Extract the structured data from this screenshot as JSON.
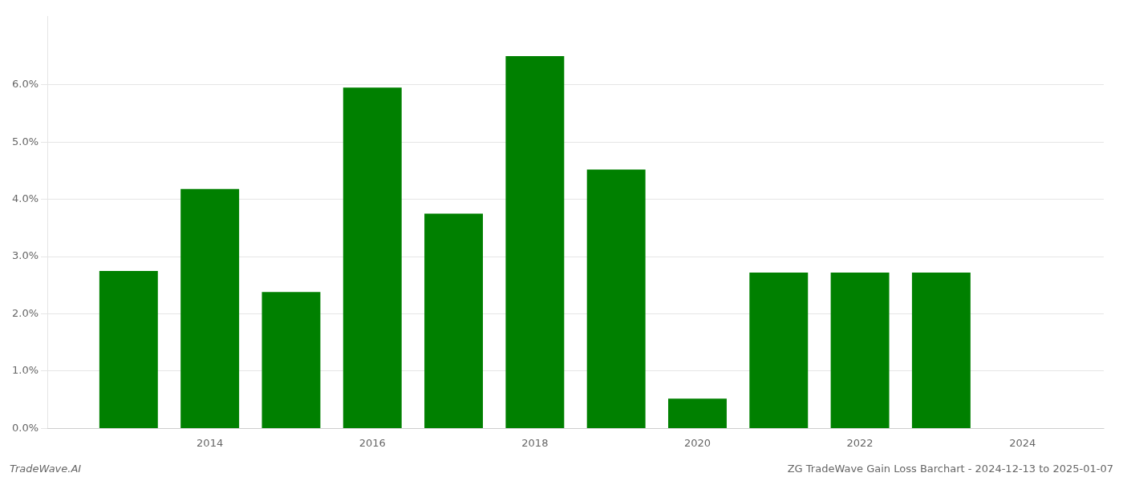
{
  "chart_data": {
    "type": "bar",
    "x": [
      2013,
      2014,
      2015,
      2016,
      2017,
      2018,
      2019,
      2020,
      2021,
      2022,
      2023
    ],
    "values": [
      2.75,
      4.18,
      2.38,
      5.95,
      3.75,
      6.5,
      4.52,
      0.52,
      2.72,
      2.72,
      2.72
    ],
    "color": "#008000",
    "xlim": [
      2012.0,
      2025.0
    ],
    "xticks": [
      2014,
      2016,
      2018,
      2020,
      2022,
      2024
    ],
    "ylim": [
      0,
      7.2
    ],
    "yticks": [
      {
        "value": 0.0,
        "label": "0.0%"
      },
      {
        "value": 1.0,
        "label": "1.0%"
      },
      {
        "value": 2.0,
        "label": "2.0%"
      },
      {
        "value": 3.0,
        "label": "3.0%"
      },
      {
        "value": 4.0,
        "label": "4.0%"
      },
      {
        "value": 5.0,
        "label": "5.0%"
      },
      {
        "value": 6.0,
        "label": "6.0%"
      }
    ],
    "grid": true,
    "annotations": [
      "TradeWave.AI",
      "ZG TradeWave Gain Loss Barchart - 2024-12-13 to 2025-01-07"
    ]
  }
}
